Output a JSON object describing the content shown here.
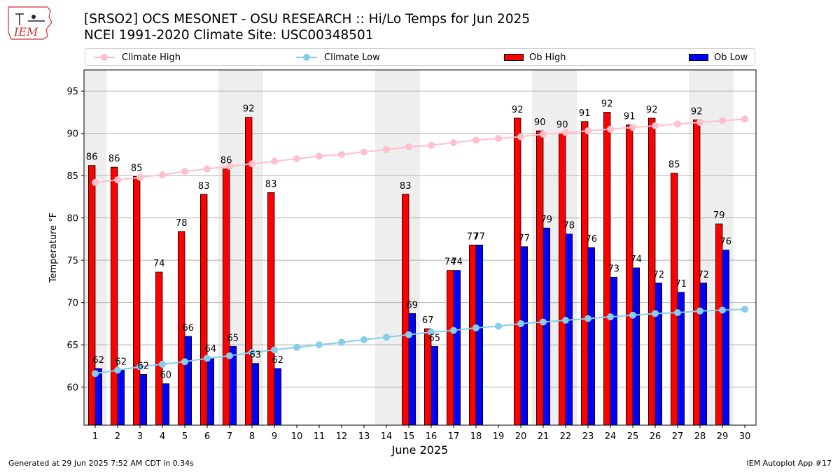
{
  "title_line1": "[SRSO2] OCS MESONET - OSU RESEARCH :: Hi/Lo Temps for Jun 2025",
  "title_line2": "NCEI 1991-2020 Climate Site: USC00348501",
  "logo_text": "IEM",
  "footer_left": "Generated at 29 Jun 2025 7:52 AM CDT in 0.34s",
  "footer_right": "IEM Autoplot App #17",
  "colors": {
    "ob_high": "#ff0000",
    "ob_low": "#0000ff",
    "climate_high": "#ffc0cb",
    "climate_low": "#87ceeb",
    "weekend_shade": "#eeeeee",
    "grid": "#b0b0b0"
  },
  "legend": [
    {
      "label": "Climate High",
      "kind": "line",
      "color": "#ffc0cb"
    },
    {
      "label": "Climate Low",
      "kind": "line",
      "color": "#87ceeb"
    },
    {
      "label": "Ob High",
      "kind": "bar",
      "color": "#ff0000"
    },
    {
      "label": "Ob Low",
      "kind": "bar",
      "color": "#0000ff"
    }
  ],
  "chart_data": {
    "type": "bar",
    "title": "[SRSO2] OCS MESONET - OSU RESEARCH :: Hi/Lo Temps for Jun 2025",
    "subtitle": "NCEI 1991-2020 Climate Site: USC00348501",
    "xlabel": "June 2025",
    "ylabel": "Temperature °F",
    "xlim": [
      0.5,
      30.5
    ],
    "ylim": [
      55.5,
      97.5
    ],
    "yticks": [
      60,
      65,
      70,
      75,
      80,
      85,
      90,
      95
    ],
    "grid": true,
    "legend_position": "top",
    "categories": [
      1,
      2,
      3,
      4,
      5,
      6,
      7,
      8,
      9,
      10,
      11,
      12,
      13,
      14,
      15,
      16,
      17,
      18,
      19,
      20,
      21,
      22,
      23,
      24,
      25,
      26,
      27,
      28,
      29,
      30
    ],
    "weekend_days": [
      1,
      7,
      8,
      14,
      15,
      21,
      22,
      28,
      29
    ],
    "series": [
      {
        "name": "Ob High",
        "type": "bar",
        "values": [
          86.2,
          86.0,
          84.9,
          73.6,
          78.4,
          82.8,
          85.8,
          91.9,
          83.0,
          null,
          null,
          null,
          null,
          null,
          82.8,
          66.9,
          73.8,
          76.8,
          null,
          91.8,
          90.3,
          90.0,
          91.4,
          92.5,
          91.0,
          91.8,
          85.3,
          91.6,
          79.3,
          null
        ],
        "labels": [
          "86",
          "86",
          "85",
          "74",
          "78",
          "83",
          "86",
          "92",
          "83",
          null,
          null,
          null,
          null,
          null,
          "83",
          "67",
          "74",
          "77",
          null,
          "92",
          "90",
          "90",
          "91",
          "92",
          "91",
          "92",
          "85",
          "92",
          "79",
          null
        ]
      },
      {
        "name": "Ob Low",
        "type": "bar",
        "values": [
          62.2,
          62.0,
          61.5,
          60.4,
          66.0,
          63.5,
          64.8,
          62.8,
          62.2,
          null,
          null,
          null,
          null,
          null,
          68.7,
          64.8,
          73.8,
          76.8,
          null,
          76.6,
          78.8,
          78.1,
          76.5,
          73.0,
          74.1,
          72.3,
          71.2,
          72.3,
          76.2,
          null
        ],
        "labels": [
          "62",
          "62",
          "62",
          "60",
          "66",
          "64",
          "65",
          "63",
          "62",
          null,
          null,
          null,
          null,
          null,
          "69",
          "65",
          "74",
          "77",
          null,
          "77",
          "79",
          "78",
          "76",
          "73",
          "74",
          "72",
          "71",
          "72",
          "76",
          null
        ]
      },
      {
        "name": "Climate High",
        "type": "line",
        "values": [
          84.2,
          84.5,
          84.8,
          85.1,
          85.5,
          85.8,
          86.1,
          86.4,
          86.7,
          87.0,
          87.3,
          87.5,
          87.8,
          88.1,
          88.4,
          88.6,
          88.9,
          89.2,
          89.4,
          89.6,
          89.9,
          90.1,
          90.3,
          90.5,
          90.7,
          90.9,
          91.1,
          91.3,
          91.5,
          91.7
        ]
      },
      {
        "name": "Climate Low",
        "type": "line",
        "values": [
          61.6,
          62.0,
          62.4,
          62.7,
          63.0,
          63.4,
          63.7,
          64.1,
          64.4,
          64.7,
          65.0,
          65.3,
          65.6,
          65.9,
          66.2,
          66.5,
          66.7,
          67.0,
          67.2,
          67.5,
          67.7,
          67.9,
          68.1,
          68.3,
          68.5,
          68.7,
          68.8,
          69.0,
          69.1,
          69.2
        ]
      }
    ]
  }
}
